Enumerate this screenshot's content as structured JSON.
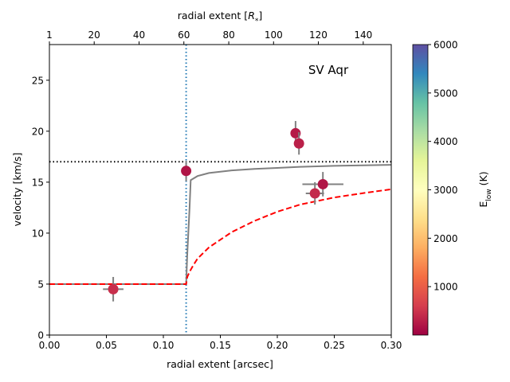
{
  "chart_data": {
    "type": "scatter",
    "annotation": "SV Aqr",
    "xlabel": "radial extent [arcsec]",
    "x2label": "radial extent [R_*]",
    "x2label_parts": {
      "prefix": "radial extent [",
      "symbol": "R",
      "sub": "*",
      "suffix": "]"
    },
    "ylabel": "velocity [km/s]",
    "xlim": [
      0.0,
      0.3
    ],
    "ylim": [
      0,
      28.5
    ],
    "xticks": [
      0.0,
      0.05,
      0.1,
      0.15,
      0.2,
      0.25,
      0.3
    ],
    "xtick_labels": [
      "0.00",
      "0.05",
      "0.10",
      "0.15",
      "0.20",
      "0.25",
      "0.30"
    ],
    "yticks": [
      0,
      5,
      10,
      15,
      20,
      25
    ],
    "ytick_labels": [
      "0",
      "5",
      "10",
      "15",
      "20",
      "25"
    ],
    "top_axis": {
      "ticks_x": [
        0.0,
        0.0393,
        0.0787,
        0.118,
        0.1574,
        0.1967,
        0.236,
        0.2754
      ],
      "labels": [
        "1",
        "20",
        "40",
        "60",
        "80",
        "100",
        "120",
        "140"
      ]
    },
    "colorbar": {
      "label": "E_low (K)",
      "label_parts": {
        "main": "E",
        "sub": "low",
        "suffix": " (K)"
      },
      "range": [
        0,
        6000
      ],
      "ticks": [
        1000,
        2000,
        3000,
        4000,
        5000,
        6000
      ],
      "tick_labels": [
        "1000",
        "2000",
        "3000",
        "4000",
        "5000",
        "6000"
      ],
      "colormap": "Spectral",
      "stops": [
        "#9e0142",
        "#d53e4f",
        "#f46d43",
        "#fdae61",
        "#fee08b",
        "#ffffbf",
        "#e6f598",
        "#abdda4",
        "#66c2a5",
        "#3288bd",
        "#5e4fa2"
      ]
    },
    "points": [
      {
        "x": 0.056,
        "y": 4.5,
        "xerr": 0.009,
        "yerr": 1.2,
        "elow": 450
      },
      {
        "x": 0.12,
        "y": 16.1,
        "xerr": 0.004,
        "yerr": 1.0,
        "elow": 200
      },
      {
        "x": 0.216,
        "y": 19.8,
        "xerr": 0.003,
        "yerr": 1.2,
        "elow": 250
      },
      {
        "x": 0.219,
        "y": 18.8,
        "xerr": 0.004,
        "yerr": 1.1,
        "elow": 300
      },
      {
        "x": 0.233,
        "y": 13.9,
        "xerr": 0.008,
        "yerr": 1.1,
        "elow": 400
      },
      {
        "x": 0.24,
        "y": 14.8,
        "xerr": 0.018,
        "yerr": 1.2,
        "elow": 200
      }
    ],
    "reference_lines": {
      "horizontal_dotted_y": 17.0,
      "vertical_dotted_x": 0.12
    },
    "models": {
      "gray_solid": {
        "name": "gray model",
        "x": [
          0.0,
          0.12,
          0.121,
          0.123,
          0.124,
          0.13,
          0.14,
          0.16,
          0.18,
          0.2,
          0.22,
          0.25,
          0.3
        ],
        "y": [
          5.0,
          5.0,
          8.0,
          12.5,
          15.2,
          15.6,
          15.9,
          16.15,
          16.3,
          16.4,
          16.5,
          16.6,
          16.7
        ]
      },
      "red_dashed": {
        "name": "red model",
        "x": [
          0.0,
          0.12,
          0.121,
          0.123,
          0.126,
          0.13,
          0.14,
          0.16,
          0.18,
          0.2,
          0.22,
          0.25,
          0.28,
          0.3
        ],
        "y": [
          5.0,
          5.0,
          5.7,
          6.2,
          6.8,
          7.5,
          8.6,
          10.1,
          11.2,
          12.1,
          12.8,
          13.5,
          14.0,
          14.3
        ]
      }
    },
    "colors": {
      "marker_fill": "#b4235a",
      "errorbar": "#808080",
      "vline": "#1f77b4",
      "hline": "#000000",
      "gray_model": "#808080",
      "red_model": "#ff0000"
    }
  }
}
